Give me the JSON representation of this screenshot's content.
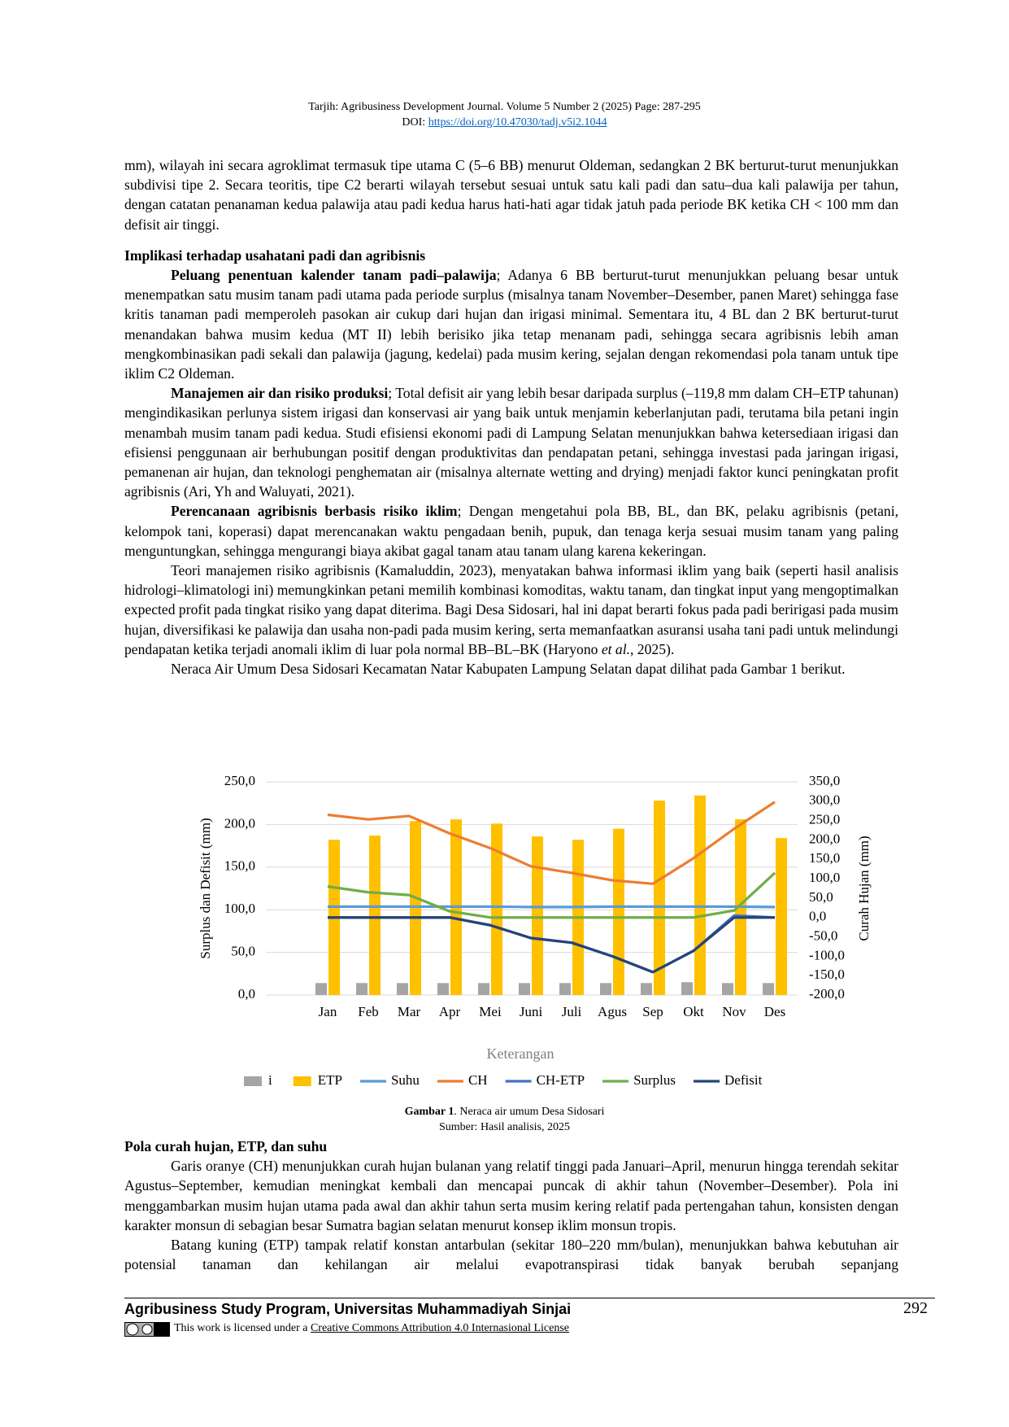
{
  "header": {
    "line1": "Tarjih: Agribusiness Development Journal.  Volume 5 Number 2 (2025) Page: 287-295",
    "doi_prefix": "DOI: ",
    "doi_link": "https://doi.org/10.47030/tadj.v5i2.1044"
  },
  "section1": {
    "paragraphs": [
      {
        "indent": false,
        "runs": [
          {
            "text": "mm), wilayah ini secara agroklimat termasuk tipe utama C (5–6 BB) menurut Oldeman, sedangkan 2 BK berturut-turut menunjukkan subdivisi tipe 2. Secara teoritis, tipe C2 berarti wilayah tersebut sesuai untuk satu kali padi dan satu–dua kali palawija per tahun, dengan catatan penanaman kedua palawija atau padi kedua harus hati-hati agar tidak jatuh pada periode BK ketika CH < 100 mm dan defisit air tinggi."
          }
        ]
      }
    ],
    "heading": "Implikasi terhadap usahatani padi dan agribisnis",
    "paragraphs2": [
      {
        "indent": true,
        "runs": [
          {
            "text": "Peluang penentuan kalender tanam padi–palawija",
            "bold": true
          },
          {
            "text": "; Adanya 6 BB berturut-turut menunjukkan peluang besar untuk menempatkan satu musim tanam padi utama pada periode surplus (misalnya tanam November–Desember, panen Maret) sehingga fase kritis tanaman padi memperoleh pasokan air cukup dari hujan dan irigasi minimal. Sementara itu, 4 BL dan 2 BK berturut-turut menandakan bahwa musim kedua (MT II) lebih berisiko jika tetap menanam padi, sehingga secara agribisnis lebih aman mengkombinasikan padi sekali dan palawija (jagung, kedelai) pada musim kering, sejalan dengan rekomendasi pola tanam untuk tipe iklim C2 Oldeman."
          }
        ]
      },
      {
        "indent": true,
        "runs": [
          {
            "text": "Manajemen air dan risiko produksi",
            "bold": true
          },
          {
            "text": "; Total defisit air yang lebih besar daripada surplus (–119,8 mm dalam CH–ETP tahunan) mengindikasikan perlunya sistem irigasi dan konservasi air yang baik untuk menjamin keberlanjutan padi, terutama bila petani ingin menambah musim tanam padi kedua.  Studi efisiensi ekonomi padi di Lampung Selatan menunjukkan bahwa ketersediaan irigasi dan efisiensi penggunaan air berhubungan positif dengan produktivitas dan pendapatan petani, sehingga investasi pada jaringan irigasi, pemanenan air hujan, dan teknologi penghematan air (misalnya alternate wetting and drying) menjadi faktor kunci peningkatan profit agribisnis (Ari, Yh and Waluyati, 2021)."
          }
        ]
      },
      {
        "indent": true,
        "runs": [
          {
            "text": "Perencanaan agribisnis berbasis risiko iklim",
            "bold": true
          },
          {
            "text": "; Dengan mengetahui pola BB, BL, dan BK, pelaku agribisnis (petani, kelompok tani, koperasi) dapat merencanakan waktu pengadaan benih, pupuk, dan tenaga kerja sesuai musim tanam yang paling menguntungkan, sehingga mengurangi biaya akibat gagal tanam atau tanam ulang karena kekeringan."
          }
        ]
      },
      {
        "indent": true,
        "runs": [
          {
            "text": "Teori manajemen risiko agribisnis (Kamaluddin, 2023), menyatakan bahwa informasi iklim yang baik (seperti hasil analisis hidrologi–klimatologi ini) memungkinkan petani memilih kombinasi komoditas, waktu tanam, dan tingkat input yang mengoptimalkan expected profit pada tingkat risiko yang dapat diterima. Bagi Desa Sidosari, hal ini dapat berarti fokus pada padi beririgasi pada musim hujan, diversifikasi ke palawija dan usaha non-padi pada musim kering, serta memanfaatkan asuransi usaha tani padi untuk melindungi pendapatan ketika terjadi anomali iklim di luar pola normal BB–BL–BK (Haryono "
          },
          {
            "text": "et al.",
            "italic": true
          },
          {
            "text": ", 2025)."
          }
        ]
      },
      {
        "indent": true,
        "runs": [
          {
            "text": "Neraca Air Umum Desa Sidosari Kecamatan Natar Kabupaten Lampung Selatan dapat dilihat pada Gambar 1 berikut."
          }
        ]
      }
    ]
  },
  "chart_data": {
    "type": "bar",
    "y_label": "Surplus dan Defisit (mm)",
    "y2_label": "Curah Hujan (mm)",
    "legend_title": "Keterangan",
    "grid": true,
    "categories": [
      "Jan",
      "Feb",
      "Mar",
      "Apr",
      "Mei",
      "Juni",
      "Juli",
      "Agus",
      "Sep",
      "Okt",
      "Nov",
      "Des"
    ],
    "ylim": [
      0,
      250
    ],
    "yticks": [
      {
        "value": 0,
        "label": "0,0"
      },
      {
        "value": 50,
        "label": "50,0"
      },
      {
        "value": 100,
        "label": "100,0"
      },
      {
        "value": 150,
        "label": "150,0"
      },
      {
        "value": 200,
        "label": "200,0"
      },
      {
        "value": 250,
        "label": "250,0"
      }
    ],
    "y2lim": [
      -200,
      350
    ],
    "y2ticks": [
      {
        "value": -200,
        "label": "-200,0"
      },
      {
        "value": -150,
        "label": "-150,0"
      },
      {
        "value": -100,
        "label": "-100,0"
      },
      {
        "value": -50,
        "label": "-50,0"
      },
      {
        "value": 0,
        "label": "0,0"
      },
      {
        "value": 50,
        "label": "50,0"
      },
      {
        "value": 100,
        "label": "100,0"
      },
      {
        "value": 150,
        "label": "150,0"
      },
      {
        "value": 200,
        "label": "200,0"
      },
      {
        "value": 250,
        "label": "250,0"
      },
      {
        "value": 300,
        "label": "300,0"
      },
      {
        "value": 350,
        "label": "350,0"
      }
    ],
    "series": [
      {
        "name": "i",
        "type": "bar",
        "color": "#a5a5a5",
        "values": [
          14,
          14,
          14,
          14,
          14,
          14,
          14,
          14,
          14,
          15,
          14,
          14
        ]
      },
      {
        "name": "ETP",
        "type": "bar",
        "color": "#ffc000",
        "values": [
          182,
          187,
          204,
          206,
          201,
          186,
          182,
          195,
          228,
          234,
          206,
          184
        ]
      },
      {
        "name": "Suhu",
        "type": "line",
        "axis": "y2",
        "color": "#5b9bd5",
        "values": [
          28,
          28,
          28,
          28,
          28,
          27,
          27,
          28,
          28,
          28,
          28,
          27
        ]
      },
      {
        "name": "CH",
        "type": "line",
        "axis": "y2",
        "color": "#ed7d31",
        "values": [
          265,
          253,
          262,
          217,
          179,
          132,
          115,
          96,
          87,
          153,
          229,
          298
        ]
      },
      {
        "name": "CH-ETP",
        "type": "line",
        "axis": "y2",
        "color": "#4472c4",
        "values": [
          0,
          0,
          0,
          0,
          -20,
          -53,
          -65,
          -100,
          -141,
          -86,
          5,
          0
        ]
      },
      {
        "name": "Surplus",
        "type": "line",
        "axis": "y2",
        "color": "#70ad47",
        "values": [
          80,
          65,
          58,
          16,
          0,
          0,
          0,
          0,
          0,
          0,
          18,
          115
        ]
      },
      {
        "name": "Defisit",
        "type": "line",
        "axis": "y2",
        "color": "#264478",
        "values": [
          0,
          0,
          0,
          0,
          -20,
          -53,
          -65,
          -100,
          -141,
          -86,
          0,
          0
        ]
      }
    ]
  },
  "caption": {
    "label": "Gambar 1",
    "text": ". Neraca air umum Desa Sidosari",
    "source": "Sumber: Hasil analisis, 2025"
  },
  "section2": {
    "heading": "Pola curah hujan, ETP, dan suhu",
    "paragraphs": [
      {
        "indent": true,
        "runs": [
          {
            "text": "Garis oranye (CH) menunjukkan curah hujan bulanan yang relatif tinggi pada Januari–April, menurun hingga terendah sekitar Agustus–September, kemudian meningkat kembali dan mencapai puncak di akhir tahun (November–Desember). Pola ini menggambarkan musim hujan utama pada awal dan akhir tahun serta musim kering relatif pada pertengahan tahun, konsisten dengan karakter monsun di sebagian besar Sumatra bagian selatan menurut konsep iklim monsun tropis."
          }
        ]
      },
      {
        "indent": true,
        "runs": [
          {
            "text": "Batang kuning (ETP) tampak relatif konstan antarbulan (sekitar 180–220 mm/bulan), menunjukkan bahwa kebutuhan air potensial tanaman dan kehilangan air melalui evapotranspirasi tidak banyak berubah sepanjang"
          }
        ]
      }
    ]
  },
  "footer": {
    "institution": "Agribusiness Study Program, Universitas Muhammadiyah Sinjai",
    "page": "292",
    "license_prefix": "This work is licensed under a ",
    "license_link": "Creative Commons Attribution 4.0 Internasional License"
  }
}
